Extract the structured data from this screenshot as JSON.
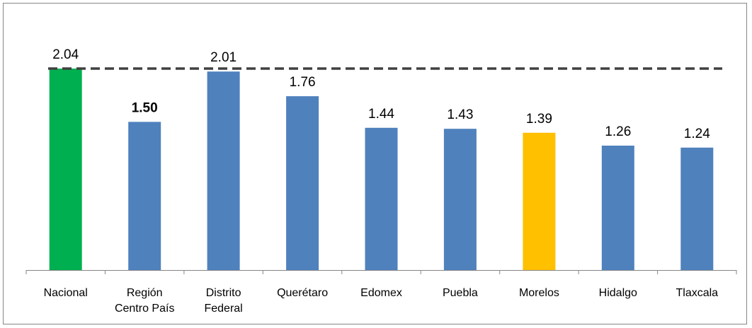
{
  "chart_data": {
    "type": "bar",
    "categories": [
      [
        "Nacional"
      ],
      [
        "Región",
        "Centro País"
      ],
      [
        "Distrito",
        "Federal"
      ],
      [
        "Querétaro"
      ],
      [
        "Edomex"
      ],
      [
        "Puebla"
      ],
      [
        "Morelos"
      ],
      [
        "Hidalgo"
      ],
      [
        "Tlaxcala"
      ]
    ],
    "values": [
      2.04,
      1.5,
      2.01,
      1.76,
      1.44,
      1.43,
      1.39,
      1.26,
      1.24
    ],
    "value_labels": [
      "2.04",
      "1.50",
      "2.01",
      "1.76",
      "1.44",
      "1.43",
      "1.39",
      "1.26",
      "1.24"
    ],
    "bold_labels": [
      false,
      true,
      false,
      false,
      false,
      false,
      false,
      false,
      false
    ],
    "bar_colors": [
      "#00b050",
      "#4f81bd",
      "#4f81bd",
      "#4f81bd",
      "#4f81bd",
      "#4f81bd",
      "#ffc000",
      "#4f81bd",
      "#4f81bd"
    ],
    "reference_line": {
      "value": 2.04,
      "color": "#404040",
      "style": "dashed"
    },
    "ylim": [
      0,
      2.04
    ],
    "grid": false,
    "legend": "none",
    "title": "",
    "xlabel": "",
    "ylabel": ""
  }
}
